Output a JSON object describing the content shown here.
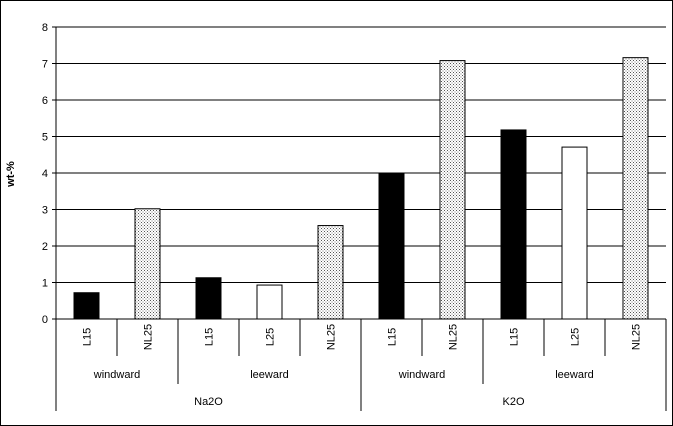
{
  "chart_data": {
    "type": "bar",
    "title": "",
    "xlabel": "",
    "ylabel": "wt-%",
    "ylim": [
      0,
      8
    ],
    "yticks": [
      0,
      1,
      2,
      3,
      4,
      5,
      6,
      7,
      8
    ],
    "grid": true,
    "legend": "none",
    "categories": [
      {
        "oxide": "Na2O",
        "side": "windward",
        "sample": "L15",
        "value": 0.72,
        "fill": "black"
      },
      {
        "oxide": "Na2O",
        "side": "windward",
        "sample": "NL25",
        "value": 3.02,
        "fill": "dotted"
      },
      {
        "oxide": "Na2O",
        "side": "leeward",
        "sample": "L15",
        "value": 1.13,
        "fill": "black"
      },
      {
        "oxide": "Na2O",
        "side": "leeward",
        "sample": "L25",
        "value": 0.93,
        "fill": "white"
      },
      {
        "oxide": "Na2O",
        "side": "leeward",
        "sample": "NL25",
        "value": 2.56,
        "fill": "dotted"
      },
      {
        "oxide": "K2O",
        "side": "windward",
        "sample": "L15",
        "value": 3.98,
        "fill": "black"
      },
      {
        "oxide": "K2O",
        "side": "windward",
        "sample": "NL25",
        "value": 7.08,
        "fill": "dotted"
      },
      {
        "oxide": "K2O",
        "side": "leeward",
        "sample": "L15",
        "value": 5.18,
        "fill": "black"
      },
      {
        "oxide": "K2O",
        "side": "leeward",
        "sample": "L25",
        "value": 4.71,
        "fill": "white"
      },
      {
        "oxide": "K2O",
        "side": "leeward",
        "sample": "NL25",
        "value": 7.16,
        "fill": "dotted"
      }
    ],
    "side_groups": [
      {
        "label": "windward",
        "start": 0,
        "end": 2
      },
      {
        "label": "leeward",
        "start": 2,
        "end": 5
      },
      {
        "label": "windward",
        "start": 5,
        "end": 7
      },
      {
        "label": "leeward",
        "start": 7,
        "end": 10
      }
    ],
    "oxide_groups": [
      {
        "label": "Na2O",
        "start": 0,
        "end": 5
      },
      {
        "label": "K2O",
        "start": 5,
        "end": 10
      }
    ],
    "colors": {
      "black": "#000000",
      "white": "#ffffff",
      "dotted_bg": "#ffffff",
      "dotted_dot": "#555555",
      "grid": "#000000"
    }
  }
}
